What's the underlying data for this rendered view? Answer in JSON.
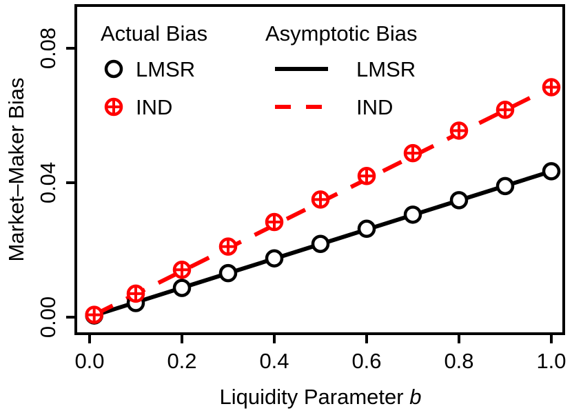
{
  "chart_data": {
    "type": "line",
    "title": "",
    "xlabel": "Liquidity Parameter",
    "xlabel_italic_suffix": "b",
    "ylabel": "Market–Maker Bias",
    "xlim": [
      0.0,
      1.0
    ],
    "ylim": [
      0.0,
      0.09
    ],
    "xticks": [
      0.0,
      0.2,
      0.4,
      0.6,
      0.8,
      1.0
    ],
    "xtick_labels": [
      "0.0",
      "0.2",
      "0.4",
      "0.6",
      "0.8",
      "1.0"
    ],
    "yticks": [
      0.0,
      0.04,
      0.08
    ],
    "ytick_labels": [
      "0.00",
      "0.04",
      "0.08"
    ],
    "grid": false,
    "legend_placement": "top-left",
    "legend": {
      "actual_title": "Actual Bias",
      "asymptotic_title": "Asymptotic Bias",
      "actual_entries": [
        "LMSR",
        "IND"
      ],
      "asymptotic_entries": [
        "LMSR",
        "IND"
      ]
    },
    "x": [
      0.01,
      0.1,
      0.2,
      0.3,
      0.4,
      0.5,
      0.6,
      0.7,
      0.8,
      0.9,
      1.0
    ],
    "series": [
      {
        "name": "LMSR",
        "kind": "actual",
        "marker": "circle",
        "color": "#000000",
        "values": [
          0.0005,
          0.0042,
          0.0087,
          0.0131,
          0.0175,
          0.0218,
          0.0263,
          0.0305,
          0.0348,
          0.039,
          0.0434
        ]
      },
      {
        "name": "IND",
        "kind": "actual",
        "marker": "circle-plus",
        "color": "#ff0000",
        "values": [
          0.0007,
          0.007,
          0.0141,
          0.021,
          0.0283,
          0.035,
          0.042,
          0.0488,
          0.0555,
          0.0617,
          0.0684
        ]
      },
      {
        "name": "LMSR",
        "kind": "asymptotic",
        "line_style": "solid",
        "color": "#000000",
        "x": [
          0.01,
          1.0
        ],
        "values": [
          0.0005,
          0.0434
        ]
      },
      {
        "name": "IND",
        "kind": "asymptotic",
        "line_style": "dashed",
        "color": "#ff0000",
        "x": [
          0.01,
          1.0
        ],
        "values": [
          0.0007,
          0.0684
        ]
      }
    ]
  }
}
